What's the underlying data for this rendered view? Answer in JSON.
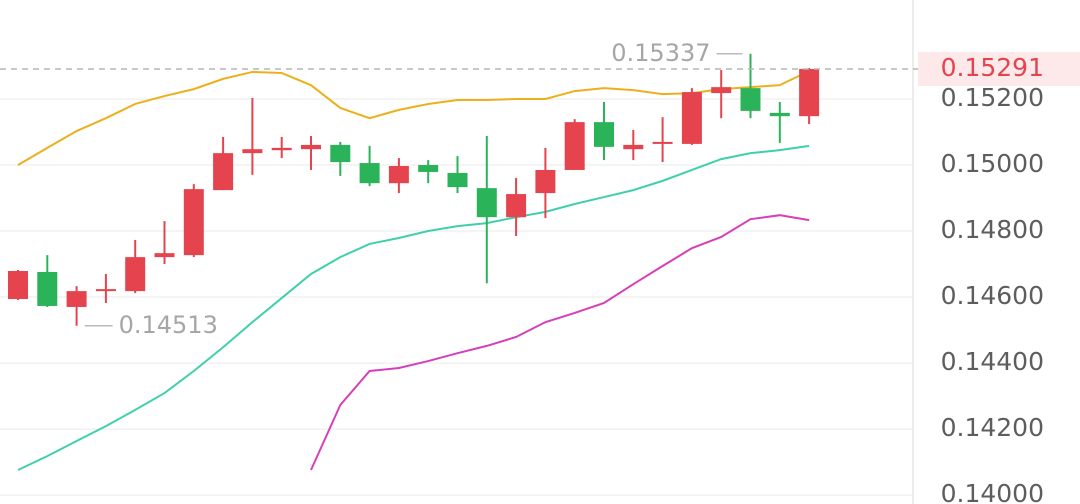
{
  "chart_data": {
    "type": "candlestick",
    "open": [
      0.14594,
      0.14676,
      0.1457,
      0.14618,
      0.14618,
      0.14721,
      0.14727,
      0.14924,
      0.15036,
      0.15045,
      0.15048,
      0.15061,
      0.15006,
      0.14945,
      0.15,
      0.14976,
      0.1493,
      0.14842,
      0.14915,
      0.14985,
      0.1513,
      0.15048,
      0.15064,
      0.15064,
      0.15218,
      0.15233,
      0.15158,
      0.15148
    ],
    "high": [
      0.14682,
      0.14727,
      0.14633,
      0.1467,
      0.14773,
      0.1483,
      0.14942,
      0.15085,
      0.15203,
      0.15085,
      0.15088,
      0.1507,
      0.15058,
      0.15021,
      0.15015,
      0.15027,
      0.15088,
      0.14961,
      0.15052,
      0.15139,
      0.15191,
      0.15106,
      0.15145,
      0.15233,
      0.15288,
      0.15337,
      0.15191,
      0.15294
    ],
    "low": [
      0.14591,
      0.1457,
      0.14513,
      0.14582,
      0.14612,
      0.147,
      0.14721,
      0.14924,
      0.1497,
      0.15021,
      0.14985,
      0.14967,
      0.14936,
      0.14915,
      0.14945,
      0.14915,
      0.14642,
      0.14785,
      0.14839,
      0.14985,
      0.15015,
      0.15015,
      0.15009,
      0.15061,
      0.15142,
      0.15142,
      0.15067,
      0.15124
    ],
    "close": [
      0.14679,
      0.14573,
      0.14618,
      0.14624,
      0.14721,
      0.14733,
      0.14927,
      0.15036,
      0.15048,
      0.15052,
      0.15061,
      0.15009,
      0.14945,
      0.14997,
      0.14979,
      0.14933,
      0.14842,
      0.14912,
      0.14985,
      0.1513,
      0.15055,
      0.15061,
      0.1507,
      0.15221,
      0.15236,
      0.15164,
      0.15148,
      0.15291
    ],
    "up_color": "#e5444f",
    "down_color": "#2bb35a",
    "lines": [
      {
        "color": "#ecb01c",
        "values": [
          0.15,
          0.15052,
          0.15103,
          0.15142,
          0.15185,
          0.15209,
          0.1523,
          0.15261,
          0.15282,
          0.15279,
          0.15242,
          0.15173,
          0.15142,
          0.15167,
          0.15185,
          0.15197,
          0.15197,
          0.152,
          0.152,
          0.15224,
          0.15233,
          0.15227,
          0.15215,
          0.15218,
          0.1523,
          0.15236,
          0.15242,
          0.15285
        ]
      },
      {
        "color": "#3fd0ab",
        "values": [
          0.14076,
          0.14118,
          0.14164,
          0.14209,
          0.14258,
          0.14309,
          0.14376,
          0.14448,
          0.14524,
          0.14597,
          0.1467,
          0.14721,
          0.14761,
          0.14779,
          0.148,
          0.14815,
          0.14824,
          0.14842,
          0.14858,
          0.14882,
          0.14903,
          0.14924,
          0.14952,
          0.14985,
          0.15018,
          0.15036,
          0.15045,
          0.15058
        ]
      },
      {
        "color": "#d63fba",
        "values": [
          null,
          null,
          null,
          null,
          null,
          null,
          null,
          null,
          null,
          null,
          0.14076,
          0.14273,
          0.14376,
          0.14385,
          0.14406,
          0.1443,
          0.14452,
          0.14479,
          0.14524,
          0.14552,
          0.14582,
          0.14639,
          0.14694,
          0.14748,
          0.14782,
          0.14836,
          0.14848,
          0.14833
        ]
      }
    ],
    "ylim": [
      0.13973,
      0.155
    ],
    "yticks": [
      {
        "value": 0.152,
        "label": "0.15200"
      },
      {
        "value": 0.15,
        "label": "0.15000"
      },
      {
        "value": 0.148,
        "label": "0.14800"
      },
      {
        "value": 0.146,
        "label": "0.14600"
      },
      {
        "value": 0.144,
        "label": "0.14400"
      },
      {
        "value": 0.142,
        "label": "0.14200"
      },
      {
        "value": 0.14,
        "label": "0.14000"
      }
    ],
    "grid": true,
    "max_label": {
      "index": 25,
      "value": 0.15337,
      "label": "0.15337"
    },
    "min_label": {
      "index": 2,
      "value": 0.14513,
      "label": "0.14513"
    },
    "last_price": {
      "value": 0.15291,
      "label": "0.15291",
      "color": "#e5444f"
    }
  }
}
